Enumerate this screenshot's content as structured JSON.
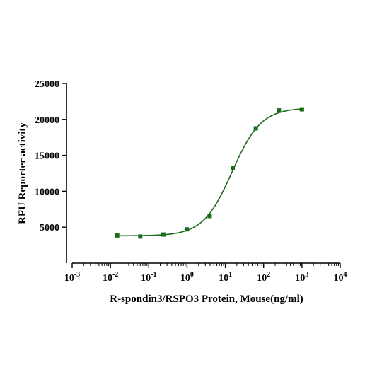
{
  "chart_data": {
    "type": "scatter",
    "title": "",
    "xlabel": "R-spondin3/RSPO3 Protein, Mouse(ng/ml)",
    "ylabel": "RFU Reporter activity",
    "x_scale": "log",
    "x_ticks": [
      {
        "base": "10",
        "exp": "-3",
        "value": 0.001
      },
      {
        "base": "10",
        "exp": "-2",
        "value": 0.01
      },
      {
        "base": "10",
        "exp": "-1",
        "value": 0.1
      },
      {
        "base": "10",
        "exp": "0",
        "value": 1
      },
      {
        "base": "10",
        "exp": "1",
        "value": 10
      },
      {
        "base": "10",
        "exp": "2",
        "value": 100
      },
      {
        "base": "10",
        "exp": "3",
        "value": 1000
      },
      {
        "base": "10",
        "exp": "4",
        "value": 10000
      }
    ],
    "xlim": [
      0.001,
      10000
    ],
    "ylim": [
      0,
      25000
    ],
    "y_ticks": [
      {
        "label": "5000",
        "value": 5000
      },
      {
        "label": "10000",
        "value": 10000
      },
      {
        "label": "15000",
        "value": 15000
      },
      {
        "label": "20000",
        "value": 20000
      },
      {
        "label": "25000",
        "value": 25000
      }
    ],
    "grid": false,
    "legend": "none",
    "series": [
      {
        "marker": "square",
        "color": "#1a6b1a",
        "x": [
          0.015,
          0.06,
          0.24,
          0.98,
          3.9,
          15.6,
          62.5,
          250,
          1000
        ],
        "y": [
          3850,
          3700,
          3980,
          4700,
          6550,
          13200,
          18750,
          21250,
          21400
        ]
      }
    ],
    "fit_curve": {
      "model": "4PL",
      "color": "#1a6b1a",
      "bottom": 3800,
      "top": 21600,
      "ec50": 15,
      "hill": 1.15,
      "x_range": [
        0.015,
        1000
      ]
    }
  }
}
